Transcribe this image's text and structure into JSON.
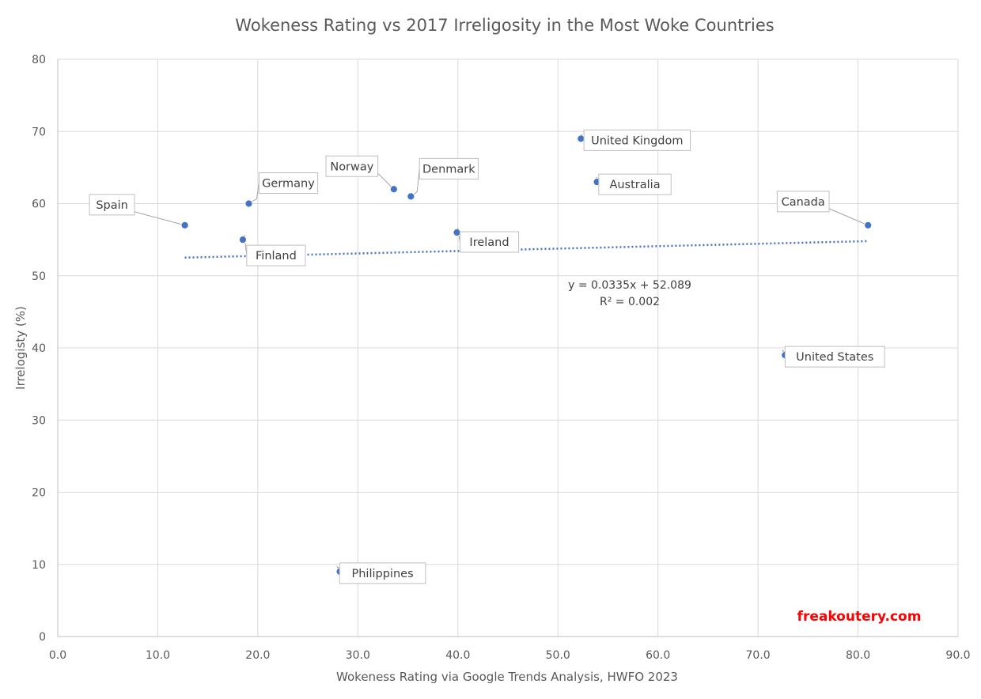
{
  "chart_data": {
    "type": "scatter",
    "title": "Wokeness Rating vs 2017 Irreligosity in the Most Woke Countries",
    "xlabel": "Wokeness Rating via Google Trends Analysis, HWFO 2023",
    "ylabel": "Irrelogisty (%)",
    "xlim": [
      0,
      90
    ],
    "ylim": [
      0,
      80
    ],
    "x_ticks": [
      "0.0",
      "10.0",
      "20.0",
      "30.0",
      "40.0",
      "50.0",
      "60.0",
      "70.0",
      "80.0",
      "90.0"
    ],
    "y_ticks": [
      "0",
      "10",
      "20",
      "30",
      "40",
      "50",
      "60",
      "70",
      "80"
    ],
    "grid": true,
    "marker_color": "#4472c4",
    "trendline_color": "#4472c4",
    "points": [
      {
        "label": "Spain",
        "x": 12.7,
        "y": 57
      },
      {
        "label": "Germany",
        "x": 19.1,
        "y": 60
      },
      {
        "label": "Finland",
        "x": 18.5,
        "y": 55
      },
      {
        "label": "Philippines",
        "x": 28.2,
        "y": 9
      },
      {
        "label": "Norway",
        "x": 33.6,
        "y": 62
      },
      {
        "label": "Denmark",
        "x": 35.3,
        "y": 61
      },
      {
        "label": "Ireland",
        "x": 39.9,
        "y": 56
      },
      {
        "label": "United Kingdom",
        "x": 52.3,
        "y": 69
      },
      {
        "label": "Australia",
        "x": 53.9,
        "y": 63
      },
      {
        "label": "United States",
        "x": 72.7,
        "y": 39
      },
      {
        "label": "Canada",
        "x": 81.0,
        "y": 57
      }
    ],
    "trendline": {
      "type": "linear",
      "slope": 0.0335,
      "intercept": 52.089,
      "x_range": [
        12.7,
        81.0
      ],
      "equation": "y = 0.0335x + 52.089",
      "r_squared": "R² = 0.002"
    },
    "watermark": {
      "text": "freakoutery.com",
      "color": "#ff0000"
    }
  }
}
